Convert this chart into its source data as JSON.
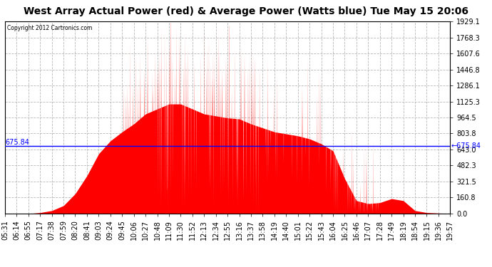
{
  "title": "West Array Actual Power (red) & Average Power (Watts blue) Tue May 15 20:06",
  "copyright": "Copyright 2012 Cartronics.com",
  "avg_power": 675.84,
  "ymax": 1929.1,
  "yticks": [
    0.0,
    160.8,
    321.5,
    482.3,
    643.0,
    803.8,
    964.5,
    1125.3,
    1286.1,
    1446.8,
    1607.6,
    1768.3,
    1929.1
  ],
  "ytick_labels": [
    "0.0",
    "160.8",
    "321.5",
    "482.3",
    "643.0",
    "803.8",
    "964.5",
    "1125.3",
    "1286.1",
    "1446.8",
    "1607.6",
    "1768.3",
    "1929.1"
  ],
  "xtick_labels": [
    "05:31",
    "06:14",
    "06:55",
    "07:17",
    "07:38",
    "07:59",
    "08:20",
    "08:41",
    "09:03",
    "09:24",
    "09:45",
    "10:06",
    "10:27",
    "10:48",
    "11:09",
    "11:30",
    "11:52",
    "12:13",
    "12:34",
    "12:55",
    "13:16",
    "13:37",
    "13:58",
    "14:19",
    "14:40",
    "15:01",
    "15:22",
    "15:43",
    "16:04",
    "16:25",
    "16:46",
    "17:07",
    "17:28",
    "17:49",
    "18:19",
    "18:54",
    "19:15",
    "19:36",
    "19:57"
  ],
  "bg_color": "#ffffff",
  "fill_color": "#ff0000",
  "line_color": "#0000ff",
  "grid_color": "#b8b8b8",
  "title_fontsize": 10,
  "tick_fontsize": 7,
  "avg_label_fontsize": 7,
  "key_times": [
    0,
    1,
    2,
    3,
    4,
    5,
    6,
    7,
    8,
    9,
    10,
    11,
    12,
    13,
    14,
    15,
    16,
    17,
    18,
    19,
    20,
    21,
    22,
    23,
    24,
    25,
    26,
    27,
    28,
    29,
    30,
    31,
    32,
    33,
    34,
    35,
    36,
    37,
    38
  ],
  "key_powers": [
    0,
    0,
    0,
    10,
    30,
    80,
    200,
    380,
    600,
    730,
    820,
    900,
    1000,
    1050,
    1100,
    1100,
    1050,
    1000,
    980,
    960,
    950,
    900,
    860,
    820,
    800,
    780,
    750,
    700,
    630,
    350,
    130,
    100,
    110,
    150,
    130,
    30,
    10,
    5,
    0
  ]
}
